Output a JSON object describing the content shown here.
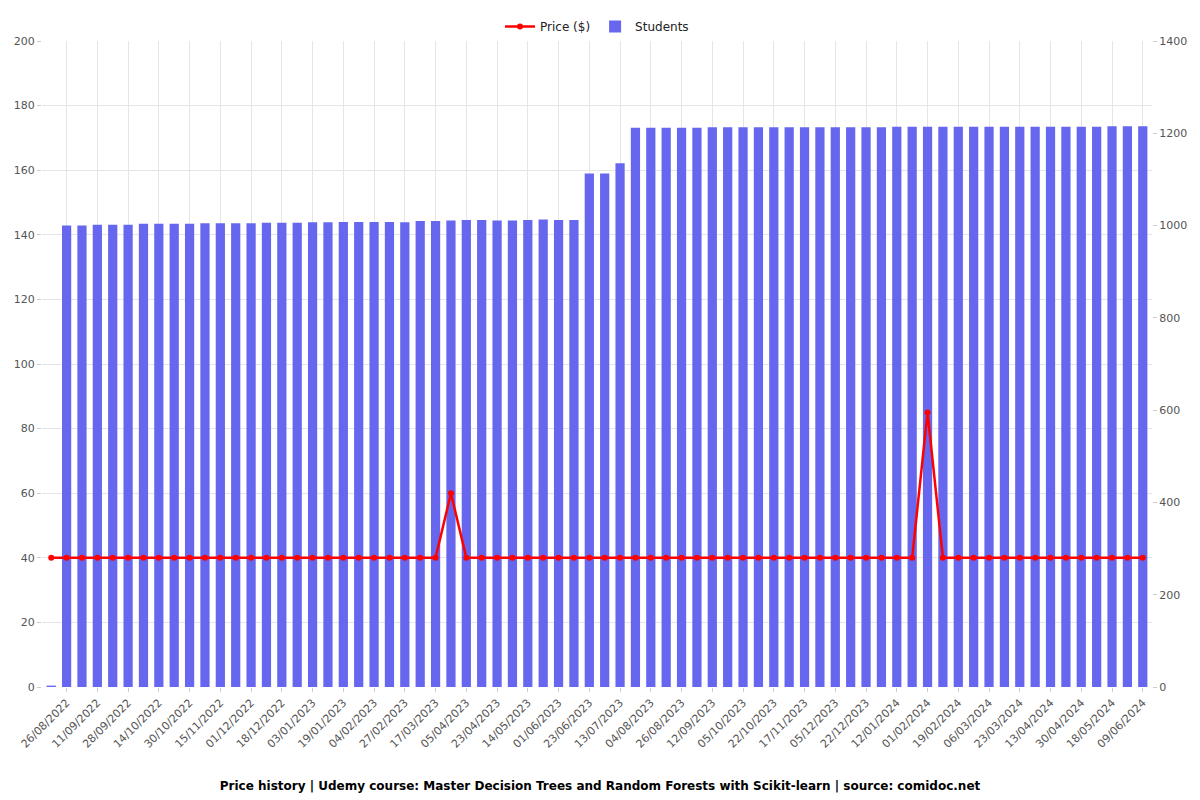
{
  "chart_data": {
    "type": "bar",
    "title": "Price history | Udemy course: Master Decision Trees and Random Forests with Scikit-learn | source: comidoc.net",
    "categories": [
      null,
      "26/08/2022",
      null,
      "11/09/2022",
      null,
      "28/09/2022",
      null,
      "14/10/2022",
      null,
      "30/10/2022",
      null,
      "15/11/2022",
      null,
      "01/12/2022",
      null,
      "18/12/2022",
      null,
      "03/01/2023",
      null,
      "19/01/2023",
      null,
      "04/02/2023",
      null,
      "27/02/2023",
      null,
      "17/03/2023",
      null,
      "05/04/2023",
      null,
      "23/04/2023",
      null,
      "14/05/2023",
      null,
      "01/06/2023",
      null,
      "23/06/2023",
      null,
      "13/07/2023",
      null,
      "04/08/2023",
      null,
      "26/08/2023",
      null,
      "12/09/2023",
      null,
      "05/10/2023",
      null,
      "22/10/2023",
      null,
      "17/11/2023",
      null,
      "05/12/2023",
      null,
      "22/12/2023",
      null,
      "12/01/2024",
      null,
      "01/02/2024",
      null,
      "19/02/2024",
      null,
      "06/03/2024",
      null,
      "23/03/2024",
      null,
      "13/04/2024",
      null,
      "30/04/2024",
      null,
      "18/05/2024",
      null,
      "09/06/2024"
    ],
    "series": [
      {
        "name": "Price ($)",
        "type": "line",
        "color": "#ff0000",
        "marker": "circle",
        "values": [
          40,
          40,
          40,
          40,
          40,
          40,
          40,
          40,
          40,
          40,
          40,
          40,
          40,
          40,
          40,
          40,
          40,
          40,
          40,
          40,
          40,
          40,
          40,
          40,
          40,
          40,
          60,
          40,
          40,
          40,
          40,
          40,
          40,
          40,
          40,
          40,
          40,
          40,
          40,
          40,
          40,
          40,
          40,
          40,
          40,
          40,
          40,
          40,
          40,
          40,
          40,
          40,
          40,
          40,
          40,
          40,
          40,
          85,
          40,
          40,
          40,
          40,
          40,
          40,
          40,
          40,
          40,
          40,
          40,
          40,
          40,
          40
        ]
      },
      {
        "name": "Students",
        "type": "bar",
        "color": "#6666ee",
        "axis": "y2",
        "values": [
          3,
          1000,
          1000,
          1002,
          1002,
          1002,
          1004,
          1004,
          1004,
          1004,
          1005,
          1005,
          1005,
          1005,
          1006,
          1006,
          1006,
          1007,
          1007,
          1008,
          1008,
          1008,
          1008,
          1007,
          1010,
          1010,
          1011,
          1012,
          1012,
          1011,
          1011,
          1012,
          1013,
          1012,
          1012,
          1113,
          1113,
          1135,
          1212,
          1212,
          1212,
          1212,
          1212,
          1213,
          1213,
          1213,
          1213,
          1213,
          1213,
          1213,
          1213,
          1213,
          1213,
          1213,
          1213,
          1214,
          1214,
          1214,
          1214,
          1214,
          1214,
          1214,
          1214,
          1214,
          1214,
          1214,
          1214,
          1214,
          1214,
          1215,
          1215,
          1215
        ]
      }
    ],
    "ylim": [
      0,
      200
    ],
    "yticks": [
      0,
      20,
      40,
      60,
      80,
      100,
      120,
      140,
      160,
      180,
      200
    ],
    "y2lim": [
      0,
      1400
    ],
    "y2ticks": [
      0,
      200,
      400,
      600,
      800,
      1000,
      1200,
      1400
    ],
    "grid": true,
    "legend": "top"
  }
}
